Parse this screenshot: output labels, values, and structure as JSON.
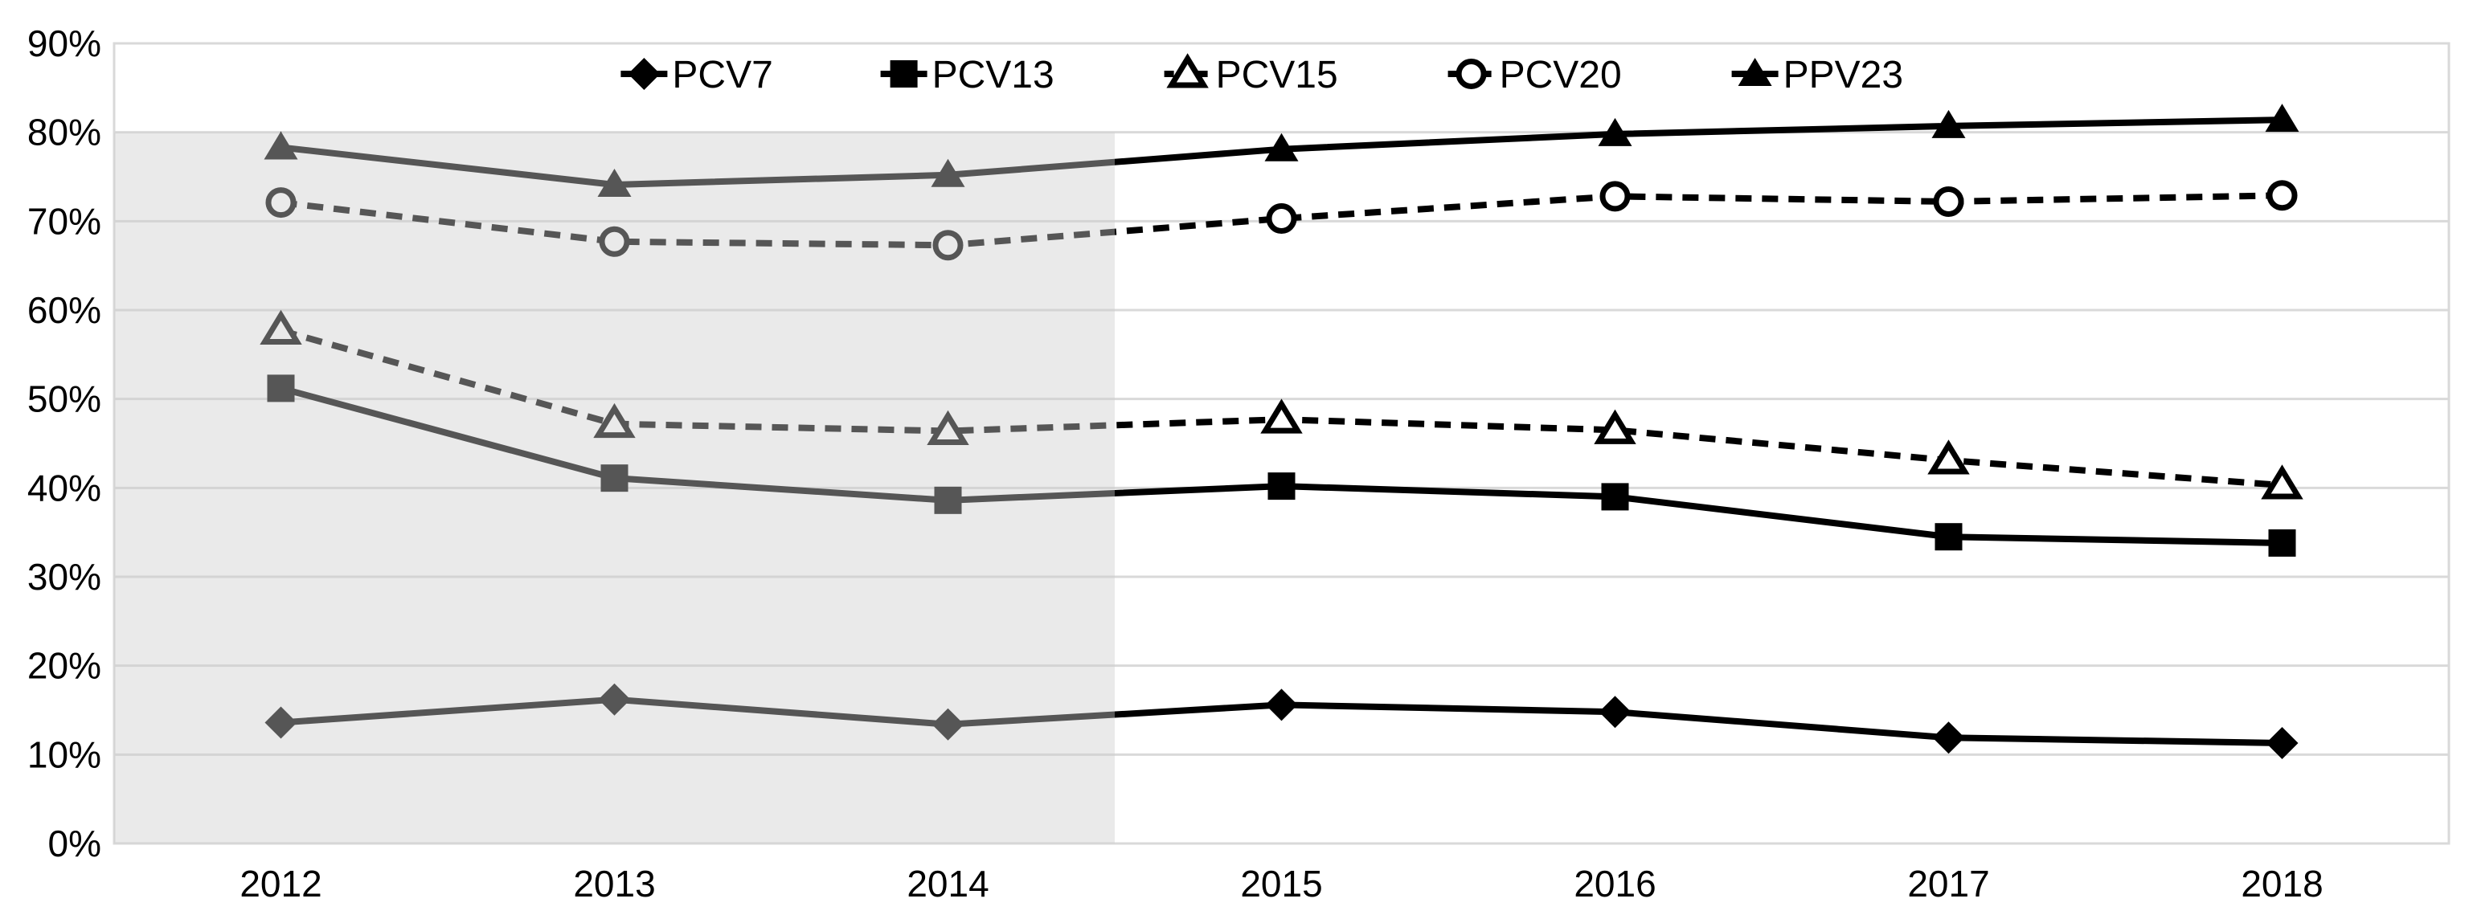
{
  "chart_data": {
    "type": "line",
    "title": "",
    "xlabel": "",
    "ylabel": "",
    "categories": [
      "2012",
      "2013",
      "2014",
      "2015",
      "2016",
      "2017",
      "2018"
    ],
    "series": [
      {
        "name": "PCV7",
        "values": [
          13.6,
          16.2,
          13.4,
          15.6,
          14.8,
          11.9,
          11.3
        ],
        "marker": "diamond-filled",
        "line_style": "solid"
      },
      {
        "name": "PCV13",
        "values": [
          51.2,
          41.1,
          38.6,
          40.2,
          39.0,
          34.5,
          33.8
        ],
        "marker": "square-filled",
        "line_style": "solid"
      },
      {
        "name": "PCV15",
        "values": [
          57.7,
          47.2,
          46.4,
          47.7,
          46.5,
          43.1,
          40.3
        ],
        "marker": "triangle-open",
        "line_style": "dashed"
      },
      {
        "name": "PCV20",
        "values": [
          72.1,
          67.7,
          67.3,
          70.3,
          72.8,
          72.2,
          72.9
        ],
        "marker": "circle-open",
        "line_style": "dashed"
      },
      {
        "name": "PPV23",
        "values": [
          78.3,
          74.1,
          75.2,
          78.1,
          79.8,
          80.7,
          81.4
        ],
        "marker": "triangle-filled",
        "line_style": "solid"
      }
    ],
    "ylim": [
      0,
      90
    ],
    "y_tick_step": 10,
    "y_tick_labels": [
      "0%",
      "10%",
      "20%",
      "30%",
      "40%",
      "50%",
      "60%",
      "70%",
      "80%",
      "90%"
    ],
    "grid": true,
    "legend_position": "top-center",
    "legend_labels": [
      "PCV7",
      "PCV13",
      "PCV15",
      "PCV20",
      "PPV23"
    ],
    "colors": {
      "series": "#000000",
      "gridline": "#d9d9d9",
      "plot_border": "#d9d9d9",
      "axis_text": "#000000",
      "shaded_region_fill": "#ececec"
    },
    "shaded_region": {
      "covers_categories": [
        "2012",
        "2013",
        "2014"
      ],
      "note": "gray band from left edge to midpoint between 2014 and 2015, from 80% line down to 0% axis"
    }
  }
}
